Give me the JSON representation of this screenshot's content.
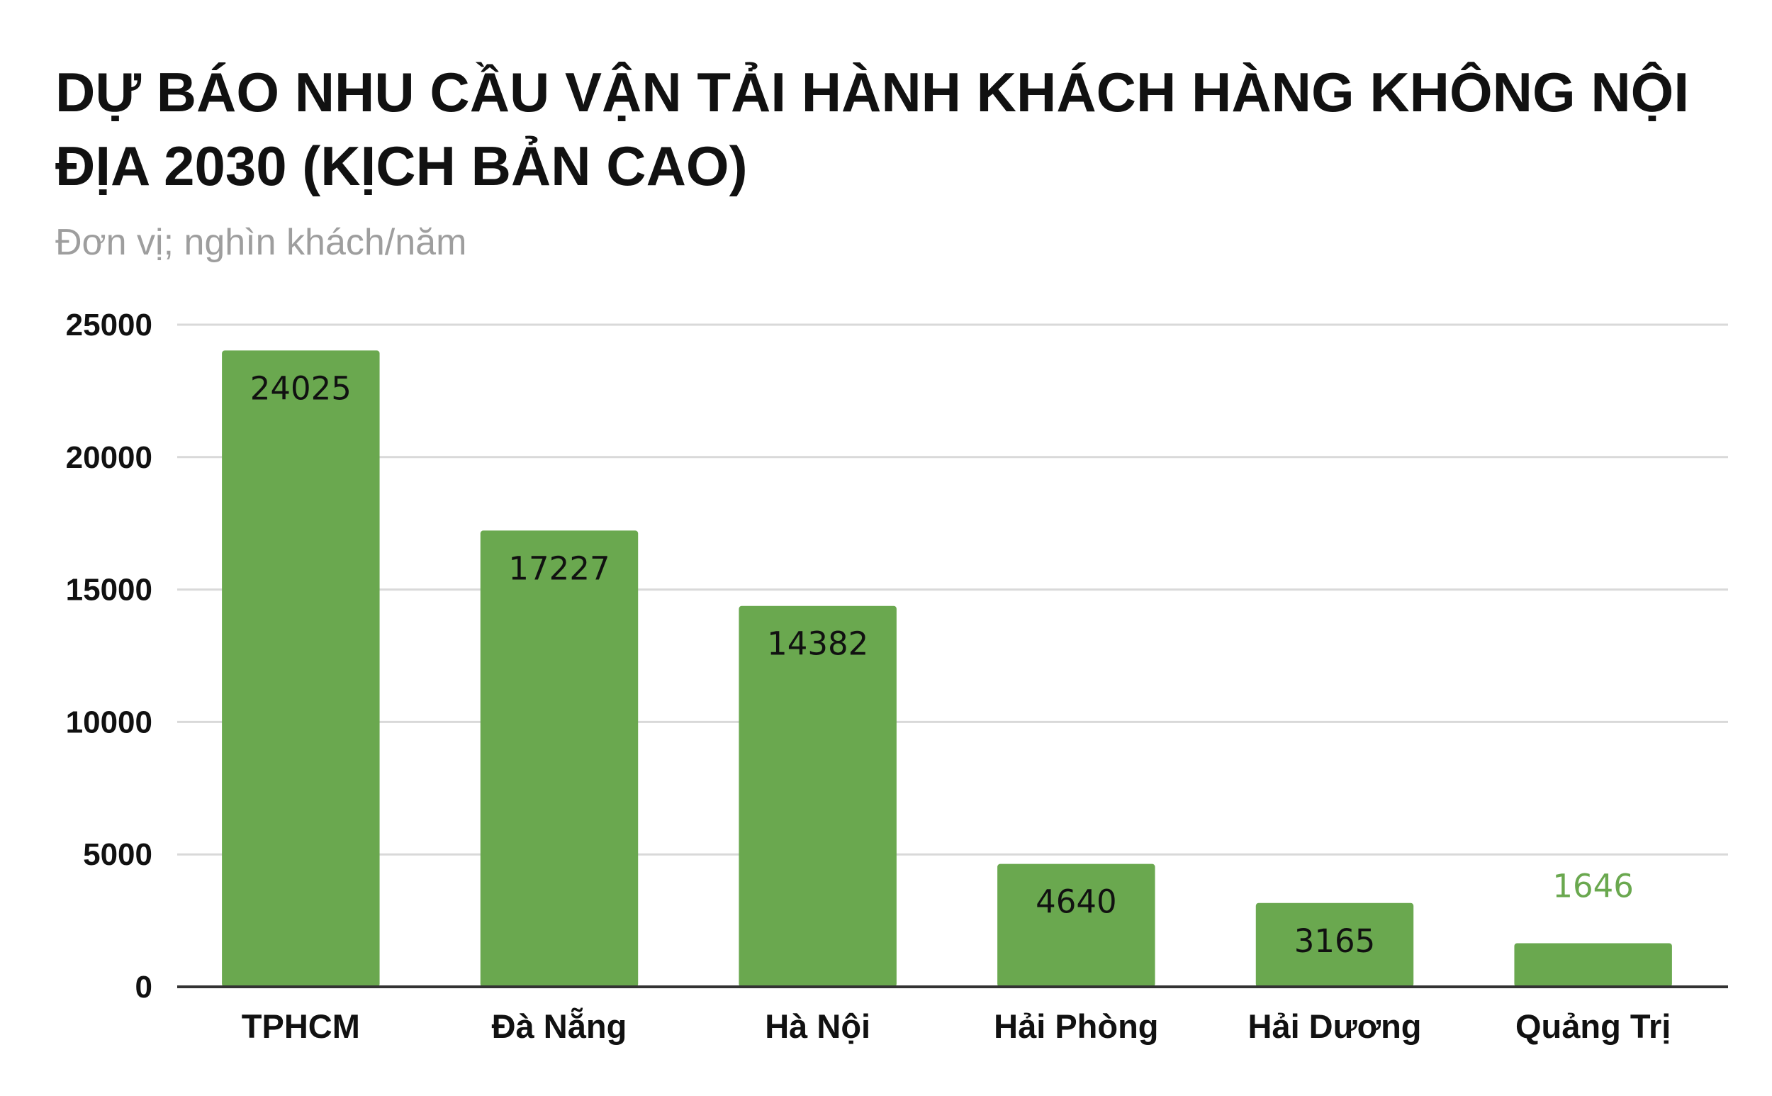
{
  "chart_data": {
    "type": "bar",
    "title": "DỰ BÁO NHU CẦU VẬN TẢI HÀNH KHÁCH HÀNG KHÔNG NỘI ĐỊA 2030 (KỊCH BẢN CAO)",
    "subtitle": "Đơn vị; nghìn khách/năm",
    "xlabel": "",
    "ylabel": "",
    "categories": [
      "TPHCM",
      "Đà Nẵng",
      "Hà Nội",
      "Hải Phòng",
      "Hải Dương",
      "Quảng Trị"
    ],
    "values": [
      24025,
      17227,
      14382,
      4640,
      3165,
      1646
    ],
    "data_labels": [
      "24025",
      "17227",
      "14382",
      "4640",
      "3165",
      "1646"
    ],
    "ylim": [
      0,
      25000
    ],
    "y_ticks": [
      "0",
      "5000",
      "10000",
      "15000",
      "20000",
      "25000"
    ],
    "grid": true,
    "legend": "none",
    "colors": {
      "bar": "#6aa84f",
      "label_inside": "#111111",
      "label_outside": "#6aa84f",
      "grid": "#d9d9d9",
      "baseline": "#333333"
    }
  }
}
